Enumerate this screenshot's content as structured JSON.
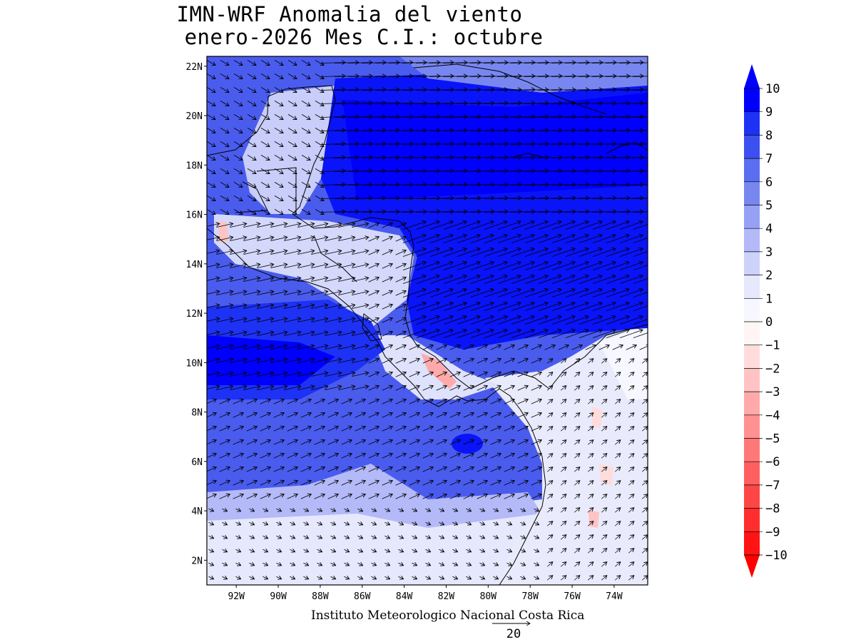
{
  "title": {
    "line1": "IMN-WRF Anomalia del viento",
    "line2": "enero-2026 Mes C.I.: octubre"
  },
  "footer": {
    "credit": "Instituto Meteorologico Nacional Costa Rica",
    "reference_vector_label": "20"
  },
  "map": {
    "lon_range": [
      -93.4,
      -72.4
    ],
    "lat_range": [
      1.0,
      22.4
    ],
    "lat_ticks": [
      "22N",
      "20N",
      "18N",
      "16N",
      "14N",
      "12N",
      "10N",
      "8N",
      "6N",
      "4N",
      "2N"
    ],
    "lat_values": [
      22,
      20,
      18,
      16,
      14,
      12,
      10,
      8,
      6,
      4,
      2
    ],
    "lon_ticks": [
      "92W",
      "90W",
      "88W",
      "86W",
      "84W",
      "82W",
      "80W",
      "78W",
      "76W",
      "74W"
    ],
    "lon_values": [
      -92,
      -90,
      -88,
      -86,
      -84,
      -82,
      -80,
      -78,
      -76,
      -74
    ]
  },
  "colorbar": {
    "labels": [
      "10",
      "9",
      "8",
      "7",
      "6",
      "5",
      "4",
      "3",
      "2",
      "1",
      "0",
      "−1",
      "−2",
      "−3",
      "−4",
      "−5",
      "−6",
      "−7",
      "−8",
      "−9",
      "−10"
    ],
    "colors": [
      "#0000ff",
      "#1e32f5",
      "#3c50f0",
      "#5a6ef0",
      "#7887f0",
      "#96a0f5",
      "#b4b9f8",
      "#cdd2fa",
      "#e6e8fd",
      "#f7f7ff",
      "#fff5f5",
      "#ffdcdc",
      "#ffc3c3",
      "#ffaaaa",
      "#ff9191",
      "#ff7878",
      "#ff5f5f",
      "#ff4646",
      "#ff2d2d",
      "#ff1414"
    ],
    "max_color": "#0000ff",
    "min_color": "#ff0000"
  }
}
